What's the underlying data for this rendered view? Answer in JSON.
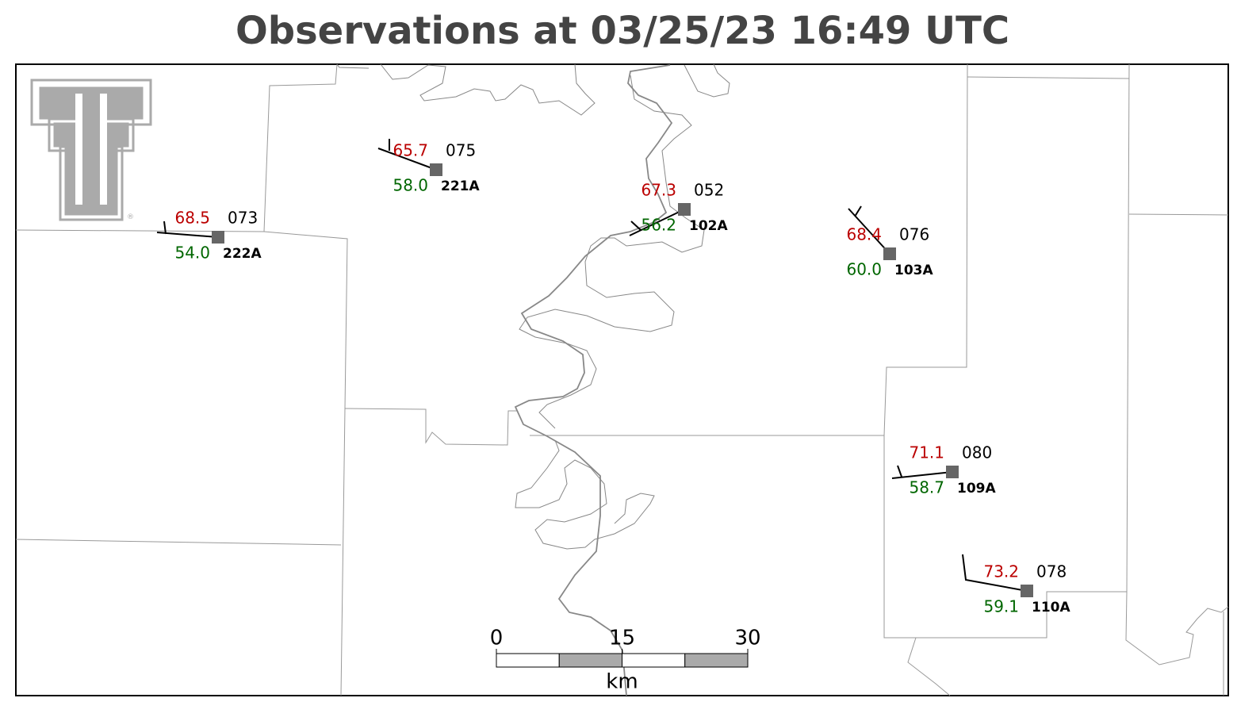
{
  "title": "Observations at 03/25/23 16:49 UTC",
  "stations": [
    {
      "id": "222A",
      "temperature": "68.5",
      "dewpoint": "54.0",
      "pressure": "073"
    },
    {
      "id": "221A",
      "temperature": "65.7",
      "dewpoint": "58.0",
      "pressure": "075"
    },
    {
      "id": "102A",
      "temperature": "67.3",
      "dewpoint": "56.2",
      "pressure": "052"
    },
    {
      "id": "103A",
      "temperature": "68.4",
      "dewpoint": "60.0",
      "pressure": "076"
    },
    {
      "id": "109A",
      "temperature": "71.1",
      "dewpoint": "58.7",
      "pressure": "080"
    },
    {
      "id": "110A",
      "temperature": "73.2",
      "dewpoint": "59.1",
      "pressure": "078"
    }
  ],
  "scale": {
    "ticks": [
      0,
      15,
      30
    ],
    "unit": "km"
  }
}
